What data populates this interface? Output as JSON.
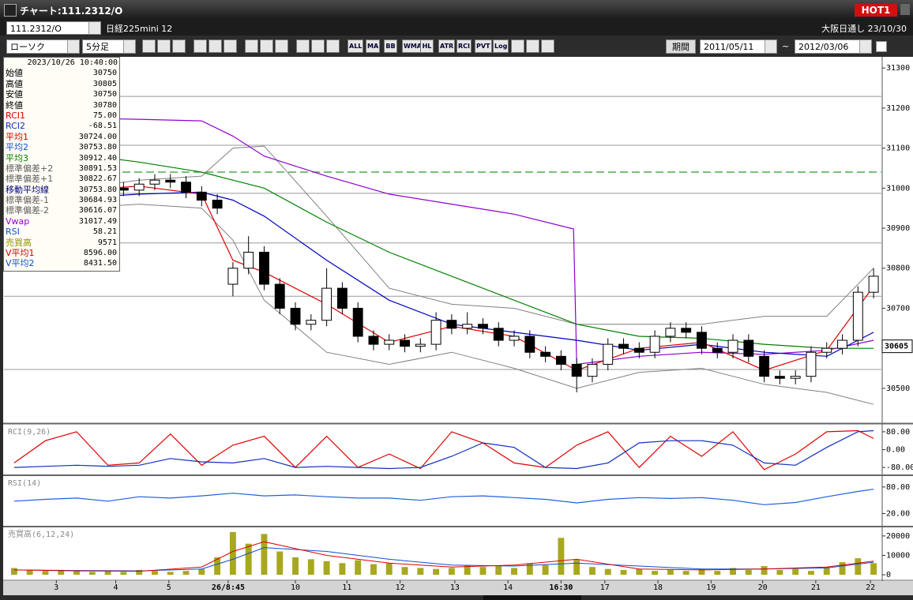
{
  "window": {
    "title": "チャート:111.2312/O",
    "badge": "HOT1"
  },
  "toolbar": {
    "symbol": "111.2312/O",
    "name": "日経225mini 12",
    "market": "大阪日通し",
    "date": "23/10/30",
    "chart_style": "ローソク",
    "interval": "5分足",
    "icons": [
      "ALL",
      "MA",
      "BB",
      "WMA",
      "HL",
      "ATR",
      "RCI",
      "PVT",
      "Log"
    ],
    "period_button": "期間",
    "from": "2011/05/11",
    "separator": "~",
    "to": "2012/03/06"
  },
  "info": {
    "datetime": "2023/10/26 10:40:00",
    "rows": [
      {
        "label": "始値",
        "value": "30750",
        "color": "#000000"
      },
      {
        "label": "高値",
        "value": "30805",
        "color": "#000000"
      },
      {
        "label": "安値",
        "value": "30750",
        "color": "#000000"
      },
      {
        "label": "終値",
        "value": "30780",
        "color": "#000000"
      },
      {
        "label": "RCI1",
        "value": "75.00",
        "color": "#d00000"
      },
      {
        "label": "RCI2",
        "value": "-68.51",
        "color": "#1030c0"
      },
      {
        "label": "平均1",
        "value": "30724.00",
        "color": "#d00000"
      },
      {
        "label": "平均2",
        "value": "30753.80",
        "color": "#1050d0"
      },
      {
        "label": "平均3",
        "value": "30912.40",
        "color": "#008000"
      },
      {
        "label": "標準偏差+2",
        "value": "30891.53",
        "color": "#606060"
      },
      {
        "label": "標準偏差+1",
        "value": "30822.67",
        "color": "#606060"
      },
      {
        "label": "移動平均線",
        "value": "30753.80",
        "color": "#000080"
      },
      {
        "label": "標準偏差-1",
        "value": "30684.93",
        "color": "#606060"
      },
      {
        "label": "標準偏差-2",
        "value": "30616.07",
        "color": "#606060"
      },
      {
        "label": "Vwap",
        "value": "31017.49",
        "color": "#9000d0"
      },
      {
        "label": "RSI",
        "value": "58.21",
        "color": "#1050d0"
      },
      {
        "label": "売買高",
        "value": "9571",
        "color": "#909000"
      },
      {
        "label": "V平均1",
        "value": "8596.00",
        "color": "#d00000"
      },
      {
        "label": "V平均2",
        "value": "8431.50",
        "color": "#1050d0"
      }
    ]
  },
  "chart_data": [
    {
      "type": "candlestick",
      "xlim": [
        -0.5,
        55.5
      ],
      "xticks": [
        {
          "value": 2.7,
          "label": "3"
        },
        {
          "value": 6.5,
          "label": "4"
        },
        {
          "value": 9.9,
          "label": "5"
        },
        {
          "value": 13.7,
          "label": "26/8:45"
        },
        {
          "value": 18.0,
          "label": "10"
        },
        {
          "value": 21.3,
          "label": "11"
        },
        {
          "value": 24.7,
          "label": "12"
        },
        {
          "value": 28.2,
          "label": "13"
        },
        {
          "value": 31.6,
          "label": "14"
        },
        {
          "value": 35.0,
          "label": "16:30"
        },
        {
          "value": 37.8,
          "label": "17"
        },
        {
          "value": 41.2,
          "label": "18"
        },
        {
          "value": 44.6,
          "label": "19"
        },
        {
          "value": 47.9,
          "label": "20"
        },
        {
          "value": 51.3,
          "label": "21"
        },
        {
          "value": 54.8,
          "label": "22"
        }
      ],
      "ylim": [
        30415,
        31322
      ],
      "yticks": [
        30500,
        30600,
        30700,
        30800,
        30900,
        31000,
        31100,
        31200,
        31300
      ],
      "open": [
        30940,
        30950,
        30965,
        30980,
        30990,
        31000,
        31005,
        31000,
        30995,
        31010,
        31020,
        31015,
        30990,
        30970,
        30760,
        30800,
        30840,
        30760,
        30700,
        30660,
        30670,
        30750,
        30700,
        30630,
        30610,
        30620,
        30605,
        30610,
        30670,
        30650,
        30660,
        30650,
        30620,
        30630,
        30590,
        30580,
        30560,
        30530,
        30560,
        30610,
        30600,
        30590,
        30630,
        30650,
        30640,
        30600,
        30590,
        30620,
        30580,
        30530,
        30525,
        30530,
        30590,
        30600,
        30620,
        30740
      ],
      "high": [
        30965,
        30980,
        30995,
        31005,
        31015,
        31020,
        31020,
        31015,
        31025,
        31035,
        31035,
        31030,
        31005,
        30985,
        30815,
        30880,
        30855,
        30775,
        30715,
        30685,
        30800,
        30765,
        30715,
        30645,
        30635,
        30635,
        30625,
        30690,
        30685,
        30690,
        30675,
        30665,
        30645,
        30645,
        30605,
        30595,
        30575,
        30575,
        30625,
        30625,
        30615,
        30645,
        30665,
        30665,
        30655,
        30615,
        30635,
        30635,
        30595,
        30545,
        30545,
        30605,
        30615,
        30635,
        30755,
        30800
      ],
      "low": [
        30925,
        30935,
        30950,
        30965,
        30975,
        30985,
        30985,
        30980,
        30980,
        30995,
        31000,
        30975,
        30955,
        30935,
        30730,
        30785,
        30745,
        30685,
        30645,
        30645,
        30655,
        30685,
        30615,
        30595,
        30595,
        30590,
        30590,
        30595,
        30635,
        30635,
        30635,
        30605,
        30605,
        30575,
        30565,
        30545,
        30490,
        30515,
        30545,
        30585,
        30575,
        30575,
        30615,
        30625,
        30585,
        30575,
        30575,
        30565,
        30515,
        30510,
        30510,
        30515,
        30575,
        30585,
        30605,
        30725
      ],
      "close": [
        30950,
        30965,
        30980,
        30990,
        31000,
        31005,
        31000,
        30995,
        31010,
        31020,
        31015,
        30990,
        30970,
        30950,
        30800,
        30840,
        30760,
        30700,
        30660,
        30670,
        30750,
        30700,
        30630,
        30610,
        30620,
        30605,
        30610,
        30670,
        30650,
        30660,
        30650,
        30620,
        30630,
        30590,
        30580,
        30560,
        30530,
        30560,
        30610,
        30600,
        30590,
        30630,
        30650,
        30640,
        30600,
        30590,
        30620,
        30580,
        30530,
        30525,
        30530,
        30590,
        30600,
        30620,
        30740,
        30780
      ],
      "levels": [
        31229,
        31107,
        30987,
        30863,
        30730,
        30547
      ],
      "alert_line": 31040,
      "last_price": 30605,
      "series": [
        {
          "name": "標準偏差+1",
          "color": "#808080",
          "x": [
            0,
            4,
            8,
            12,
            14,
            16,
            20,
            24,
            28,
            32,
            36,
            40,
            44,
            48,
            52,
            55
          ],
          "values": [
            30990,
            31000,
            31020,
            31030,
            31100,
            31105,
            30930,
            30750,
            30710,
            30700,
            30660,
            30660,
            30660,
            30680,
            30680,
            30800
          ]
        },
        {
          "name": "標準偏差-1",
          "color": "#808080",
          "x": [
            0,
            4,
            8,
            12,
            14,
            16,
            20,
            24,
            28,
            32,
            36,
            40,
            44,
            48,
            52,
            55
          ],
          "values": [
            30920,
            30950,
            30960,
            30950,
            30870,
            30720,
            30590,
            30560,
            30590,
            30550,
            30500,
            30540,
            30550,
            30510,
            30490,
            30460
          ]
        },
        {
          "name": "平均3",
          "color": "#008000",
          "x": [
            0,
            4,
            8,
            12,
            14,
            16,
            20,
            24,
            28,
            32,
            36,
            40,
            44,
            48,
            52,
            55
          ],
          "values": [
            31105,
            31085,
            31065,
            31040,
            31020,
            31000,
            30915,
            30840,
            30780,
            30720,
            30660,
            30630,
            30625,
            30610,
            30600,
            30600
          ]
        },
        {
          "name": "Vwap",
          "color": "#9000d0",
          "x": [
            0,
            4,
            8,
            12,
            14,
            16,
            20,
            24,
            28,
            32,
            35.8,
            36,
            40,
            44,
            48,
            52,
            55
          ],
          "values": [
            31178,
            31175,
            31172,
            31168,
            31130,
            31080,
            31030,
            30985,
            30960,
            30935,
            30898,
            30560,
            30580,
            30590,
            30585,
            30595,
            30620
          ]
        },
        {
          "name": "平均2",
          "color": "#0000c0",
          "x": [
            0,
            4,
            8,
            12,
            14,
            16,
            20,
            24,
            28,
            32,
            36,
            40,
            44,
            48,
            52,
            55
          ],
          "values": [
            30950,
            30975,
            30985,
            30990,
            30970,
            30930,
            30820,
            30720,
            30660,
            30640,
            30620,
            30595,
            30610,
            30590,
            30580,
            30640
          ]
        },
        {
          "name": "平均1",
          "color": "#e00000",
          "x": [
            0,
            4,
            8,
            12,
            14,
            16,
            20,
            24,
            28,
            32,
            36,
            40,
            44,
            48,
            52,
            55
          ],
          "values": [
            30955,
            30995,
            31005,
            30985,
            30820,
            30790,
            30710,
            30615,
            30655,
            30630,
            30545,
            30600,
            30615,
            30545,
            30595,
            30755
          ]
        }
      ]
    },
    {
      "type": "line",
      "title": "RCI(9,26)",
      "ylim": [
        -108,
        108
      ],
      "yticks": [
        {
          "value": 80,
          "label": "80.00"
        },
        {
          "value": 0,
          "label": "0.00"
        },
        {
          "value": -80,
          "label": "-80.00"
        }
      ],
      "series": [
        {
          "name": "RCI1",
          "color": "#e00000",
          "x": [
            0,
            2,
            4,
            6,
            8,
            10,
            12,
            14,
            16,
            18,
            20,
            22,
            24,
            26,
            28,
            30,
            32,
            34,
            36,
            38,
            40,
            42,
            44,
            46,
            48,
            50,
            52,
            54,
            55
          ],
          "values": [
            -60,
            40,
            80,
            -70,
            -60,
            70,
            -70,
            20,
            60,
            -80,
            60,
            -80,
            -20,
            -85,
            80,
            30,
            -60,
            -80,
            20,
            80,
            -80,
            60,
            -30,
            80,
            -90,
            -20,
            80,
            85,
            50
          ]
        },
        {
          "name": "RCI2",
          "color": "#1030c0",
          "x": [
            0,
            2,
            4,
            6,
            8,
            10,
            12,
            14,
            16,
            18,
            20,
            22,
            24,
            26,
            28,
            30,
            32,
            34,
            36,
            38,
            40,
            42,
            44,
            46,
            48,
            50,
            52,
            54,
            55
          ],
          "values": [
            -80,
            -75,
            -70,
            -75,
            -70,
            -40,
            -55,
            -60,
            -40,
            -80,
            -75,
            -80,
            -85,
            -80,
            -30,
            30,
            10,
            -80,
            -85,
            -60,
            30,
            40,
            40,
            20,
            -60,
            -70,
            10,
            80,
            85
          ]
        }
      ]
    },
    {
      "type": "line",
      "title": "RSI(14)",
      "ylim": [
        -6,
        103
      ],
      "yticks": [
        {
          "value": 80,
          "label": "80.00"
        },
        {
          "value": 20,
          "label": "20.00"
        }
      ],
      "series": [
        {
          "name": "RSI",
          "color": "#2060e0",
          "x": [
            0,
            2,
            4,
            6,
            8,
            10,
            12,
            14,
            16,
            18,
            20,
            22,
            24,
            26,
            28,
            30,
            32,
            34,
            36,
            38,
            40,
            42,
            44,
            46,
            48,
            50,
            52,
            54,
            55
          ],
          "values": [
            48,
            52,
            55,
            48,
            58,
            55,
            60,
            66,
            60,
            62,
            58,
            55,
            55,
            50,
            58,
            60,
            56,
            52,
            44,
            52,
            56,
            54,
            56,
            50,
            40,
            45,
            58,
            70,
            75
          ]
        }
      ]
    },
    {
      "type": "bar",
      "title": "売買高(6,12,24)",
      "color": "#a8a820",
      "ylim": [
        -1600,
        24000
      ],
      "yticks": [
        20000,
        10000,
        0
      ],
      "values": [
        3500,
        2500,
        2000,
        2500,
        2000,
        1500,
        2000,
        1500,
        2500,
        2000,
        1500,
        2000,
        3000,
        9000,
        22000,
        16000,
        21000,
        12000,
        9000,
        8000,
        7000,
        6000,
        7500,
        5500,
        6000,
        4000,
        3500,
        3000,
        3500,
        5000,
        4000,
        4500,
        3500,
        6000,
        5000,
        19000,
        8000,
        4000,
        3000,
        2500,
        3000,
        2000,
        2500,
        2000,
        3000,
        2000,
        3500,
        2500,
        4500,
        2500,
        3000,
        2000,
        4000,
        6500,
        8500,
        6000
      ],
      "series": [
        {
          "name": "V平均2",
          "color": "#1050d0",
          "x": [
            0,
            4,
            8,
            12,
            14,
            16,
            20,
            24,
            28,
            32,
            36,
            40,
            44,
            48,
            52,
            55
          ],
          "values": [
            2500,
            2200,
            2000,
            3000,
            8000,
            14000,
            12000,
            8000,
            5000,
            4500,
            6000,
            4500,
            3000,
            3000,
            3500,
            6500
          ]
        },
        {
          "name": "V平均1",
          "color": "#e00000",
          "x": [
            0,
            4,
            8,
            12,
            14,
            16,
            20,
            24,
            28,
            32,
            36,
            40,
            44,
            48,
            52,
            55
          ],
          "values": [
            2500,
            2000,
            1800,
            4000,
            12000,
            17000,
            10000,
            6000,
            4000,
            5000,
            8000,
            3000,
            2500,
            3000,
            4000,
            7000
          ]
        }
      ]
    }
  ]
}
